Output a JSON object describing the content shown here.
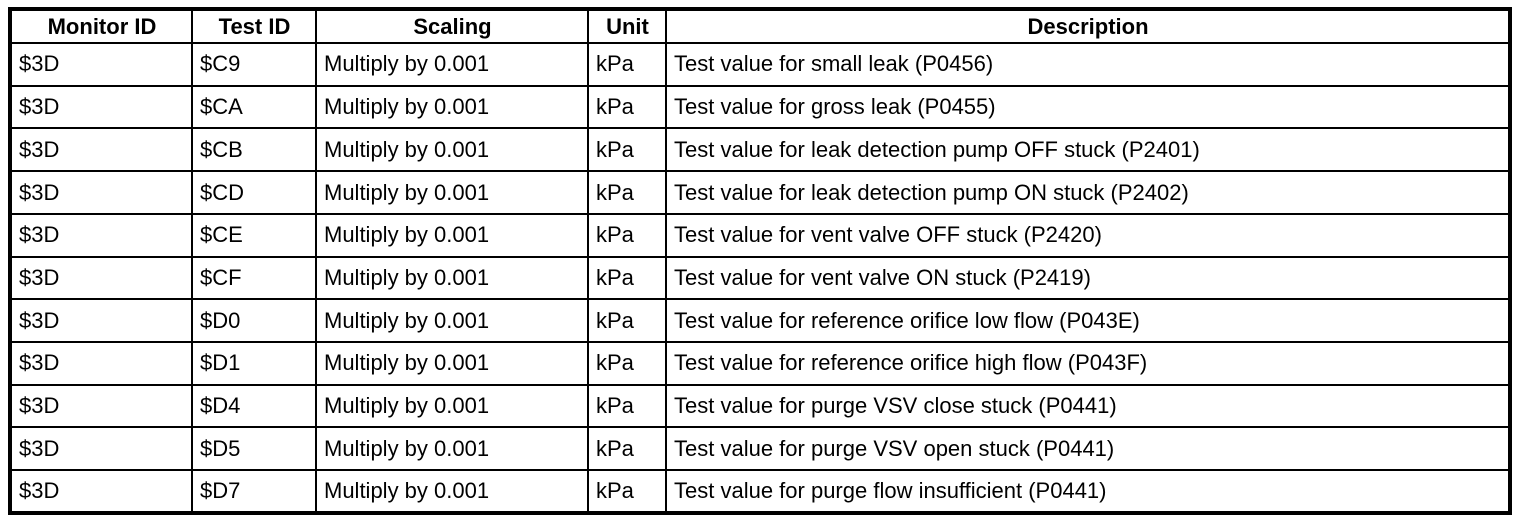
{
  "table": {
    "columns": [
      "Monitor ID",
      "Test ID",
      "Scaling",
      "Unit",
      "Description"
    ],
    "column_keys": [
      "monitor-id",
      "test-id",
      "scaling",
      "unit",
      "description"
    ],
    "rows": [
      [
        "$3D",
        "$C9",
        "Multiply by 0.001",
        "kPa",
        "Test value for small leak (P0456)"
      ],
      [
        "$3D",
        "$CA",
        "Multiply by 0.001",
        "kPa",
        "Test value for gross leak (P0455)"
      ],
      [
        "$3D",
        "$CB",
        "Multiply by 0.001",
        "kPa",
        "Test value for leak detection pump OFF stuck (P2401)"
      ],
      [
        "$3D",
        "$CD",
        "Multiply by 0.001",
        "kPa",
        "Test value for leak detection pump ON stuck (P2402)"
      ],
      [
        "$3D",
        "$CE",
        "Multiply by 0.001",
        "kPa",
        "Test value for vent valve OFF stuck (P2420)"
      ],
      [
        "$3D",
        "$CF",
        "Multiply by 0.001",
        "kPa",
        "Test value for vent valve ON stuck (P2419)"
      ],
      [
        "$3D",
        "$D0",
        "Multiply by 0.001",
        "kPa",
        "Test value for reference orifice low flow (P043E)"
      ],
      [
        "$3D",
        "$D1",
        "Multiply by 0.001",
        "kPa",
        "Test value for reference orifice high flow (P043F)"
      ],
      [
        "$3D",
        "$D4",
        "Multiply by 0.001",
        "kPa",
        "Test value for purge VSV close stuck (P0441)"
      ],
      [
        "$3D",
        "$D5",
        "Multiply by 0.001",
        "kPa",
        "Test value for purge VSV open stuck (P0441)"
      ],
      [
        "$3D",
        "$D7",
        "Multiply by 0.001",
        "kPa",
        "Test value for purge flow insufficient (P0441)"
      ]
    ],
    "colors": {
      "border": "#000000",
      "background": "#ffffff",
      "text": "#000000"
    }
  }
}
